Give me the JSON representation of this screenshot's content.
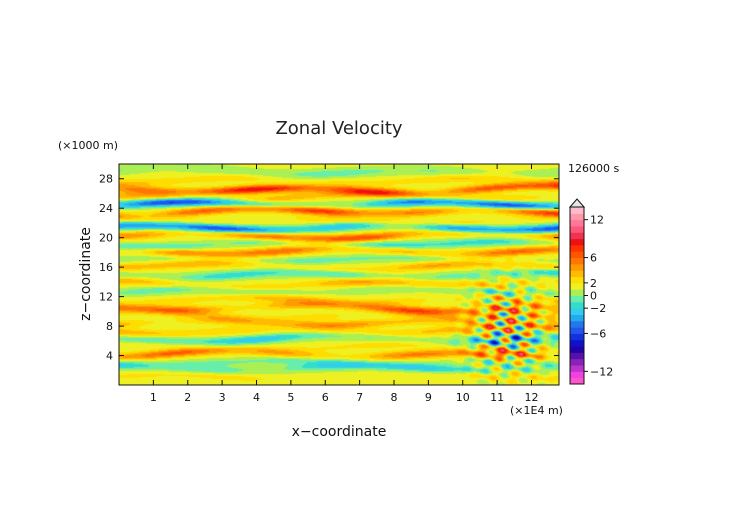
{
  "chart_data": {
    "type": "heatmap",
    "title": "Zonal Velocity",
    "xlabel": "x−coordinate",
    "ylabel": "z−coordinate",
    "x_unit": "(×1E4 m)",
    "y_unit": "(×1000 m)",
    "time_label": "126000 s",
    "x_ticks": [
      "1",
      "2",
      "3",
      "4",
      "5",
      "6",
      "7",
      "8",
      "9",
      "10",
      "11",
      "12"
    ],
    "y_ticks": [
      "4",
      "8",
      "12",
      "16",
      "20",
      "24",
      "28"
    ],
    "xlim": [
      0,
      12.8
    ],
    "ylim": [
      0,
      30
    ],
    "colorbar": {
      "levels": [
        -14,
        -13,
        -12,
        -11,
        -10,
        -9,
        -8,
        -7,
        -6,
        -5,
        -4,
        -3,
        -2,
        -1,
        0,
        1,
        2,
        3,
        4,
        5,
        6,
        7,
        8,
        9,
        10,
        11,
        12,
        13,
        14
      ],
      "colors": [
        "#ff55cc",
        "#ee44dd",
        "#bb33cc",
        "#8822bb",
        "#5511aa",
        "#2200aa",
        "#1111cc",
        "#1133dd",
        "#2255ee",
        "#2277ee",
        "#22aaee",
        "#33ccee",
        "#33ddcc",
        "#66eeaa",
        "#aaf055",
        "#eef022",
        "#ffdd00",
        "#ffbb00",
        "#ff9900",
        "#ff7700",
        "#ff5500",
        "#ff3300",
        "#ee1111",
        "#ee3355",
        "#ff5577",
        "#ff7799",
        "#ff99aa",
        "#ffbbcc"
      ],
      "tick_labels": [
        "12",
        "6",
        "2",
        "0",
        "−2",
        "−6",
        "−12"
      ],
      "tick_values": [
        12,
        6,
        2,
        0,
        -2,
        -6,
        -12
      ]
    },
    "bands": [
      {
        "z": 1.2,
        "amp": 1.0
      },
      {
        "z": 2.4,
        "amp": -3.0
      },
      {
        "z": 3.2,
        "amp": -1.5
      },
      {
        "z": 4.2,
        "amp": 4.0
      },
      {
        "z": 5.2,
        "amp": 1.0
      },
      {
        "z": 6.3,
        "amp": -3.0
      },
      {
        "z": 7.4,
        "amp": 2.0
      },
      {
        "z": 8.5,
        "amp": 3.0
      },
      {
        "z": 9.5,
        "amp": 1.5
      },
      {
        "z": 10.5,
        "amp": 4.5
      },
      {
        "z": 11.6,
        "amp": 2.0
      },
      {
        "z": 12.8,
        "amp": -1.5
      },
      {
        "z": 13.8,
        "amp": 2.5
      },
      {
        "z": 15.0,
        "amp": -2.5
      },
      {
        "z": 16.2,
        "amp": 2.5
      },
      {
        "z": 17.0,
        "amp": -1.5
      },
      {
        "z": 18.2,
        "amp": 4.0
      },
      {
        "z": 19.2,
        "amp": -2.5
      },
      {
        "z": 20.4,
        "amp": 5.0
      },
      {
        "z": 21.4,
        "amp": -6.0
      },
      {
        "z": 22.4,
        "amp": 1.5
      },
      {
        "z": 23.6,
        "amp": 6.0
      },
      {
        "z": 24.6,
        "amp": -6.0
      },
      {
        "z": 25.6,
        "amp": 3.0
      },
      {
        "z": 26.6,
        "amp": 6.0
      },
      {
        "z": 27.8,
        "amp": 1.5
      },
      {
        "z": 29.0,
        "amp": -1.5
      }
    ]
  }
}
